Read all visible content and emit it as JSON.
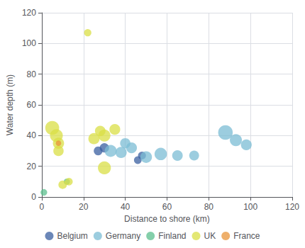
{
  "chart_data": {
    "type": "scatter",
    "xlabel": "Distance to shore (km)",
    "ylabel": "Water depth (m)",
    "xlim": [
      0,
      120
    ],
    "ylim": [
      0,
      120
    ],
    "xticks": [
      0,
      20,
      40,
      60,
      80,
      100,
      120
    ],
    "yticks": [
      0,
      20,
      40,
      60,
      80,
      100,
      120
    ],
    "grid": true,
    "legend": "bottom",
    "series": [
      {
        "name": "Belgium",
        "color": "#3a5fa0",
        "x": [
          27,
          30,
          46,
          48
        ],
        "values": [
          30,
          32,
          24,
          27
        ],
        "sizes": [
          80,
          90,
          60,
          65
        ]
      },
      {
        "name": "Germany",
        "color": "#7bbcd4",
        "x": [
          33,
          38,
          40,
          43,
          50,
          57,
          65,
          73,
          88,
          93,
          98
        ],
        "values": [
          30,
          29,
          35,
          32,
          26,
          28,
          27,
          27,
          42,
          37,
          34
        ],
        "sizes": [
          150,
          130,
          110,
          120,
          140,
          160,
          115,
          100,
          220,
          150,
          120
        ]
      },
      {
        "name": "Finland",
        "color": "#5bbf8e",
        "x": [
          1,
          12
        ],
        "values": [
          3,
          10
        ],
        "sizes": [
          45,
          40
        ]
      },
      {
        "name": "UK",
        "color": "#d9df45",
        "x": [
          5,
          7,
          8,
          8,
          10,
          13,
          22,
          25,
          28,
          30,
          30,
          35
        ],
        "values": [
          45,
          40,
          35,
          30,
          8,
          10,
          107,
          38,
          43,
          40,
          19,
          44
        ],
        "sizes": [
          200,
          170,
          130,
          110,
          75,
          60,
          55,
          130,
          115,
          150,
          175,
          120
        ]
      },
      {
        "name": "France",
        "color": "#e8943a",
        "x": [
          8
        ],
        "values": [
          35
        ],
        "sizes": [
          30
        ]
      }
    ]
  }
}
